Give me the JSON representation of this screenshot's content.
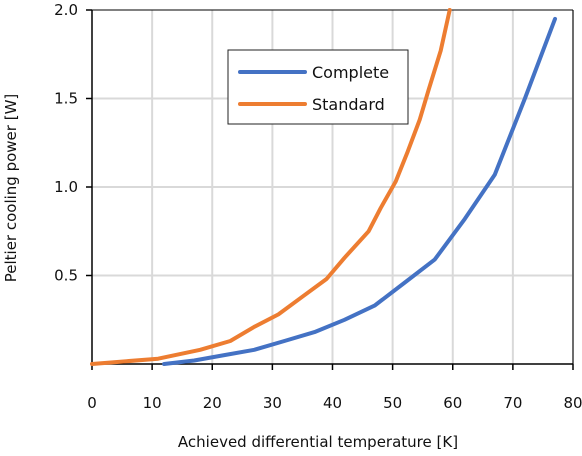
{
  "chart_data": {
    "type": "line",
    "title": "",
    "xlabel": "Achieved differential temperature [K]",
    "ylabel": "Peltier cooling power [W]",
    "xlim": [
      0,
      80
    ],
    "ylim": [
      0,
      2.0
    ],
    "x_ticks": [
      "0",
      "10",
      "20",
      "30",
      "40",
      "50",
      "60",
      "70",
      "80"
    ],
    "y_ticks": [
      "0.5",
      "1.0",
      "1.5",
      "2.0"
    ],
    "grid": true,
    "legend_position": "upper-center",
    "series": [
      {
        "name": "Complete",
        "color": "#4472C4",
        "points": [
          [
            12,
            0.0
          ],
          [
            17,
            0.02
          ],
          [
            22,
            0.05
          ],
          [
            27,
            0.08
          ],
          [
            32,
            0.13
          ],
          [
            37,
            0.18
          ],
          [
            42,
            0.25
          ],
          [
            47,
            0.33
          ],
          [
            52,
            0.46
          ],
          [
            57,
            0.59
          ],
          [
            62,
            0.82
          ],
          [
            67,
            1.07
          ],
          [
            72,
            1.5
          ],
          [
            77,
            1.95
          ]
        ]
      },
      {
        "name": "Standard",
        "color": "#ED7D31",
        "points": [
          [
            0,
            0.0
          ],
          [
            11,
            0.03
          ],
          [
            18,
            0.08
          ],
          [
            23,
            0.13
          ],
          [
            27,
            0.21
          ],
          [
            31,
            0.28
          ],
          [
            35,
            0.38
          ],
          [
            39,
            0.48
          ],
          [
            42,
            0.6
          ],
          [
            46,
            0.75
          ],
          [
            48,
            0.88
          ],
          [
            50.5,
            1.03
          ],
          [
            52.5,
            1.2
          ],
          [
            54.5,
            1.38
          ],
          [
            56,
            1.55
          ],
          [
            58,
            1.77
          ],
          [
            59.5,
            2.0
          ]
        ]
      }
    ]
  }
}
